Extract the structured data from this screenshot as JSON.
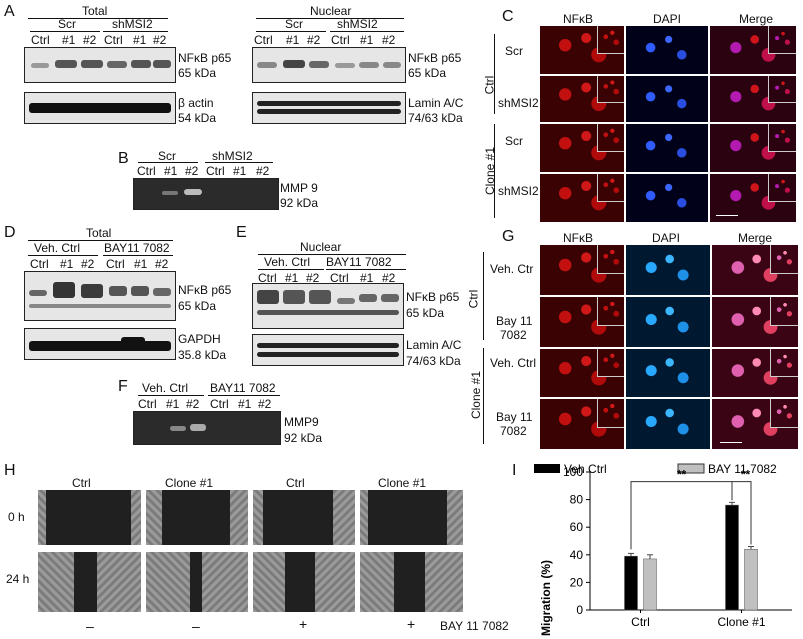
{
  "panels": {
    "a": "A",
    "b": "B",
    "c": "C",
    "d": "D",
    "e": "E",
    "f": "F",
    "g": "G",
    "h": "H",
    "i": "I"
  },
  "labels": {
    "total": "Total",
    "nuclear": "Nuclear",
    "scr": "Scr",
    "shmsi2": "shMSI2",
    "ctrl": "Ctrl",
    "n1": "#1",
    "n2": "#2",
    "nfkb": "NFκB p65",
    "kda65": "65 kDa",
    "bactin": "β actin",
    "kda54": "54 kDa",
    "lamin": "Lamin A/C",
    "kda74": "74/63 kDa",
    "mmp9s": "MMP 9",
    "mmp9": "MMP9",
    "kda92": "92 kDa",
    "vehctrl": "Veh. Ctrl",
    "bay": "BAY11 7082",
    "gapdh": "GAPDH",
    "kda358": "35.8 kDa",
    "nfkbstain": "NFκB",
    "dapi": "DAPI",
    "merge": "Merge",
    "clone1": "Clone #1",
    "vehctr": "Veh. Ctr",
    "bay11": "Bay 11",
    "n7082": "7082",
    "h0": "0 h",
    "h24": "24 h",
    "minus": "–",
    "plus": "+",
    "bay11sp": "BAY 11 7082"
  },
  "chart_data": {
    "type": "bar",
    "categories": [
      "Ctrl",
      "Clone #1"
    ],
    "series": [
      {
        "name": "Veh Ctrl",
        "values": [
          39,
          76
        ],
        "errors": [
          2,
          2
        ],
        "color": "#000000"
      },
      {
        "name": "BAY 11 7082",
        "values": [
          37,
          44
        ],
        "errors": [
          3,
          2
        ],
        "color": "#c0c0c0"
      }
    ],
    "ylabel": "Migration (%)",
    "ylim": [
      0,
      100
    ],
    "yticks": [
      0,
      20,
      40,
      60,
      80,
      100
    ],
    "significance": "**",
    "legend": "top"
  }
}
